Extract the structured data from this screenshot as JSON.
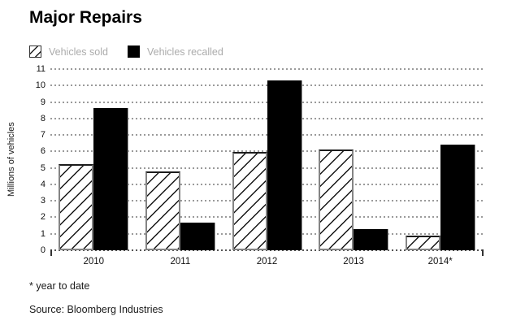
{
  "chart_data": {
    "type": "bar",
    "title": "Major Repairs",
    "categories": [
      "2010",
      "2011",
      "2012",
      "2013",
      "2014*"
    ],
    "series": [
      {
        "name": "Vehicles sold",
        "style": "hatched",
        "values": [
          5.25,
          4.8,
          5.95,
          6.1,
          0.9
        ]
      },
      {
        "name": "Vehicles recalled",
        "style": "solid",
        "values": [
          8.65,
          1.7,
          10.3,
          1.3,
          6.4
        ]
      }
    ],
    "xlabel": "",
    "ylabel": "Millions of vehicles",
    "ylim": [
      0,
      11
    ],
    "yticks": [
      0,
      1,
      2,
      3,
      4,
      5,
      6,
      7,
      8,
      9,
      10,
      11
    ],
    "grid": "horizontal-dotted",
    "legend_position": "top-left"
  },
  "footnote": "* year to date",
  "source": "Source: Bloomberg Industries",
  "colors": {
    "bar_solid": "#000000",
    "bar_edge": "#848484",
    "hatch": "#141414",
    "gridline": "#9a9a9a",
    "legend_text": "#ababab",
    "text": "#1a1a1a",
    "background": "#ffffff"
  }
}
